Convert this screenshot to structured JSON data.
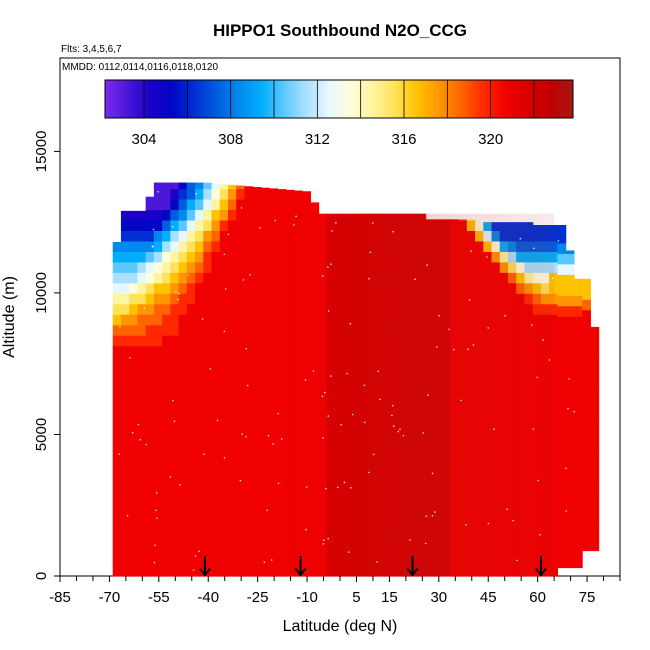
{
  "chart_data": {
    "type": "heatmap",
    "title": "HIPPO1 Southbound N2O_CCG",
    "annotations": {
      "flights": "Flts: 3,4,5,6,7",
      "mmdd": "MMDD: 0112,0114,0116,0118,0120"
    },
    "xlabel": "Latitude (deg N)",
    "ylabel": "Altitude (m)",
    "xlim": [
      -85,
      85
    ],
    "ylim": [
      0,
      18300
    ],
    "x_ticks": [
      -85,
      -70,
      -55,
      -40,
      -25,
      -10,
      5,
      15,
      30,
      45,
      60,
      75
    ],
    "x_ticks_labeled": [
      -85,
      -70,
      -55,
      -40,
      -25,
      -10,
      5,
      15,
      30,
      45,
      60,
      75
    ],
    "x_minor_ticks": [
      -80,
      -75,
      -65,
      -60,
      -50,
      -45,
      -35,
      -30,
      -20,
      -15,
      -5,
      0,
      10,
      20,
      25,
      35,
      40,
      50,
      55,
      65,
      70,
      80,
      85
    ],
    "y_ticks": [
      0,
      5000,
      10000,
      15000
    ],
    "colorbar": {
      "min": 302.2,
      "max": 323.8,
      "ticks": [
        304,
        308,
        312,
        316,
        320
      ],
      "colors": [
        "#7b2bf0",
        "#4b18d8",
        "#1d00c8",
        "#0006c6",
        "#0030d4",
        "#005ce0",
        "#0088ec",
        "#00aefc",
        "#5ac8ff",
        "#a8e0ff",
        "#e6f7ff",
        "#ffffdc",
        "#fff4a0",
        "#ffe25a",
        "#ffc200",
        "#ff9600",
        "#ff6400",
        "#ff2800",
        "#f00000",
        "#d80000",
        "#c00000",
        "#a81616"
      ]
    },
    "profile_latitudes": [
      -41,
      -12,
      22,
      61
    ],
    "grid": false,
    "legend": "colorbar-top"
  }
}
